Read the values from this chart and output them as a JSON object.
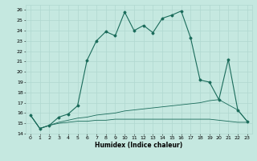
{
  "xlabel": "Humidex (Indice chaleur)",
  "background_color": "#c5e8e0",
  "line_color": "#1a6b5a",
  "grid_color": "#b0d8d0",
  "xlim": [
    -0.5,
    23.5
  ],
  "ylim": [
    14,
    26.5
  ],
  "yticks": [
    14,
    15,
    16,
    17,
    18,
    19,
    20,
    21,
    22,
    23,
    24,
    25,
    26
  ],
  "xticks": [
    0,
    1,
    2,
    3,
    4,
    5,
    6,
    7,
    8,
    9,
    10,
    11,
    12,
    13,
    14,
    15,
    16,
    17,
    18,
    19,
    20,
    21,
    22,
    23
  ],
  "series_main": {
    "x": [
      0,
      1,
      2,
      3,
      4,
      5,
      6,
      7,
      8,
      9,
      10,
      11,
      12,
      13,
      14,
      15,
      16,
      17,
      18,
      19,
      20,
      21,
      22,
      23
    ],
    "y": [
      15.8,
      14.5,
      14.8,
      15.6,
      15.9,
      16.7,
      21.1,
      23.0,
      23.9,
      23.5,
      25.8,
      24.0,
      24.5,
      23.8,
      25.2,
      25.5,
      25.9,
      23.3,
      19.2,
      19.0,
      17.3,
      21.2,
      16.3,
      15.2
    ]
  },
  "series_line2": {
    "x": [
      0,
      1,
      2,
      3,
      4,
      5,
      6,
      7,
      8,
      9,
      10,
      11,
      12,
      13,
      14,
      15,
      16,
      17,
      18,
      19,
      20,
      21,
      22,
      23
    ],
    "y": [
      15.8,
      14.5,
      14.8,
      15.1,
      15.3,
      15.5,
      15.6,
      15.8,
      15.9,
      16.0,
      16.2,
      16.3,
      16.4,
      16.5,
      16.6,
      16.7,
      16.8,
      16.9,
      17.0,
      17.2,
      17.3,
      16.8,
      16.3,
      15.2
    ]
  },
  "series_line3": {
    "x": [
      0,
      1,
      2,
      3,
      4,
      5,
      6,
      7,
      8,
      9,
      10,
      11,
      12,
      13,
      14,
      15,
      16,
      17,
      18,
      19,
      20,
      21,
      22,
      23
    ],
    "y": [
      15.8,
      14.5,
      14.8,
      15.0,
      15.1,
      15.2,
      15.2,
      15.3,
      15.3,
      15.4,
      15.4,
      15.4,
      15.4,
      15.4,
      15.4,
      15.4,
      15.4,
      15.4,
      15.4,
      15.4,
      15.3,
      15.2,
      15.1,
      15.1
    ]
  }
}
